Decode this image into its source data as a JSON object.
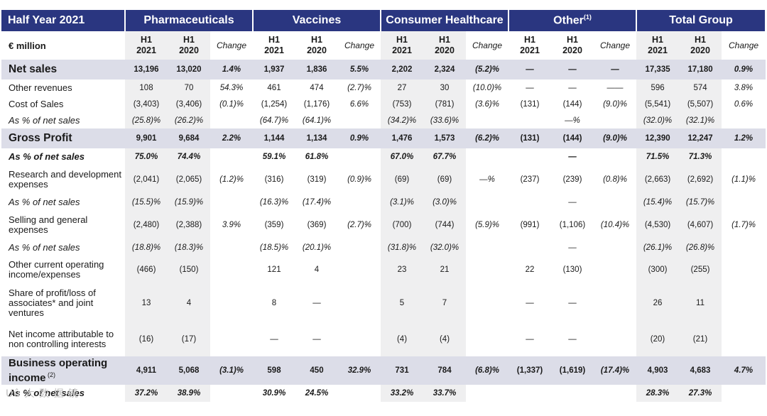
{
  "header": {
    "period": "Half Year 2021",
    "segments": [
      "Pharmaceuticals",
      "Vaccines",
      "Consumer Healthcare",
      "Other",
      "Total Group"
    ],
    "other_footnote": "(1)"
  },
  "subheader": {
    "unit": "€ million",
    "h1": "H1",
    "y2021": "2021",
    "y2020": "2020",
    "change": "Change"
  },
  "rows": [
    {
      "label": "Net sales",
      "type": "band",
      "h": 28,
      "cells": [
        "13,196",
        "13,020",
        "1.4%",
        "1,937",
        "1,836",
        "5.5%",
        "2,202",
        "2,324",
        "(5.2)%",
        "—",
        "—",
        "—",
        "17,335",
        "17,180",
        "0.9%"
      ]
    },
    {
      "label": "Other revenues",
      "type": "normal",
      "h": 23,
      "cells": [
        "108",
        "70",
        "54.3%",
        "461",
        "474",
        "(2.7)%",
        "27",
        "30",
        "(10.0)%",
        "—",
        "—",
        "——",
        "596",
        "574",
        "3.8%"
      ]
    },
    {
      "label": "Cost of Sales",
      "type": "normal",
      "h": 23,
      "cells": [
        "(3,403)",
        "(3,406)",
        "(0.1)%",
        "(1,254)",
        "(1,176)",
        "6.6%",
        "(753)",
        "(781)",
        "(3.6)%",
        "(131)",
        "(144)",
        "(9.0)%",
        "(5,541)",
        "(5,507)",
        "0.6%"
      ]
    },
    {
      "label": "As % of net sales",
      "type": "ital",
      "h": 23,
      "cells": [
        "(25.8)%",
        "(26.2)%",
        "",
        "(64.7)%",
        "(64.1)%",
        "",
        "(34.2)%",
        "(33.6)%",
        "",
        "",
        "—%",
        "",
        "(32.0)%",
        "(32.1)%",
        ""
      ]
    },
    {
      "label": "Gross Profit",
      "type": "band",
      "h": 28,
      "cells": [
        "9,901",
        "9,684",
        "2.2%",
        "1,144",
        "1,134",
        "0.9%",
        "1,476",
        "1,573",
        "(6.2)%",
        "(131)",
        "(144)",
        "(9.0)%",
        "12,390",
        "12,247",
        "1.2%"
      ]
    },
    {
      "label": "As % of net sales",
      "type": "boldital",
      "h": 24,
      "cells": [
        "75.0%",
        "74.4%",
        "",
        "59.1%",
        "61.8%",
        "",
        "67.0%",
        "67.7%",
        "",
        "",
        "—",
        "",
        "71.5%",
        "71.3%",
        ""
      ]
    },
    {
      "label": "Research and development expenses",
      "type": "normal",
      "h": 40,
      "cells": [
        "(2,041)",
        "(2,065)",
        "(1.2)%",
        "(316)",
        "(319)",
        "(0.9)%",
        "(69)",
        "(69)",
        "—%",
        "(237)",
        "(239)",
        "(0.8)%",
        "(2,663)",
        "(2,692)",
        "(1.1)%"
      ]
    },
    {
      "label": "As % of net sales",
      "type": "ital",
      "h": 24,
      "cells": [
        "(15.5)%",
        "(15.9)%",
        "",
        "(16.3)%",
        "(17.4)%",
        "",
        "(3.1)%",
        "(3.0)%",
        "",
        "",
        "—",
        "",
        "(15.4)%",
        "(15.7)%",
        ""
      ]
    },
    {
      "label": "Selling and general expenses",
      "type": "normal",
      "h": 40,
      "cells": [
        "(2,480)",
        "(2,388)",
        "3.9%",
        "(359)",
        "(369)",
        "(2.7)%",
        "(700)",
        "(744)",
        "(5.9)%",
        "(991)",
        "(1,106)",
        "(10.4)%",
        "(4,530)",
        "(4,607)",
        "(1.7)%"
      ]
    },
    {
      "label": "As % of net sales",
      "type": "ital",
      "h": 24,
      "cells": [
        "(18.8)%",
        "(18.3)%",
        "",
        "(18.5)%",
        "(20.1)%",
        "",
        "(31.8)%",
        "(32.0)%",
        "",
        "",
        "—",
        "",
        "(26.1)%",
        "(26.8)%",
        ""
      ]
    },
    {
      "label": "Other current operating income/expenses",
      "type": "normal",
      "h": 38,
      "cells": [
        "(466)",
        "(150)",
        "",
        "121",
        "4",
        "",
        "23",
        "21",
        "",
        "22",
        "(130)",
        "",
        "(300)",
        "(255)",
        ""
      ]
    },
    {
      "label": "Share of profit/loss of associates* and joint ventures",
      "type": "normal",
      "h": 55,
      "cells": [
        "13",
        "4",
        "",
        "8",
        "—",
        "",
        "5",
        "7",
        "",
        "—",
        "—",
        "",
        "26",
        "11",
        ""
      ]
    },
    {
      "label": "Net income attributable to non controlling interests",
      "type": "normal",
      "h": 48,
      "cells": [
        "(16)",
        "(17)",
        "",
        "—",
        "—",
        "",
        "(4)",
        "(4)",
        "",
        "—",
        "—",
        "",
        "(20)",
        "(21)",
        ""
      ]
    },
    {
      "label": "Business operating income",
      "label_sup": "(2)",
      "type": "boi",
      "h": 40,
      "cells": [
        "4,911",
        "5,068",
        "(3.1)%",
        "598",
        "450",
        "32.9%",
        "731",
        "784",
        "(6.8)%",
        "(1,337)",
        "(1,619)",
        "(17.4)%",
        "4,903",
        "4,683",
        "4.7%"
      ]
    },
    {
      "label": "As % of net sales",
      "type": "last",
      "h": 24,
      "cells": [
        "37.2%",
        "38.9%",
        "",
        "30.9%",
        "24.5%",
        "",
        "33.2%",
        "33.7%",
        "",
        "",
        "",
        "",
        "28.3%",
        "27.3%",
        ""
      ]
    }
  ]
}
